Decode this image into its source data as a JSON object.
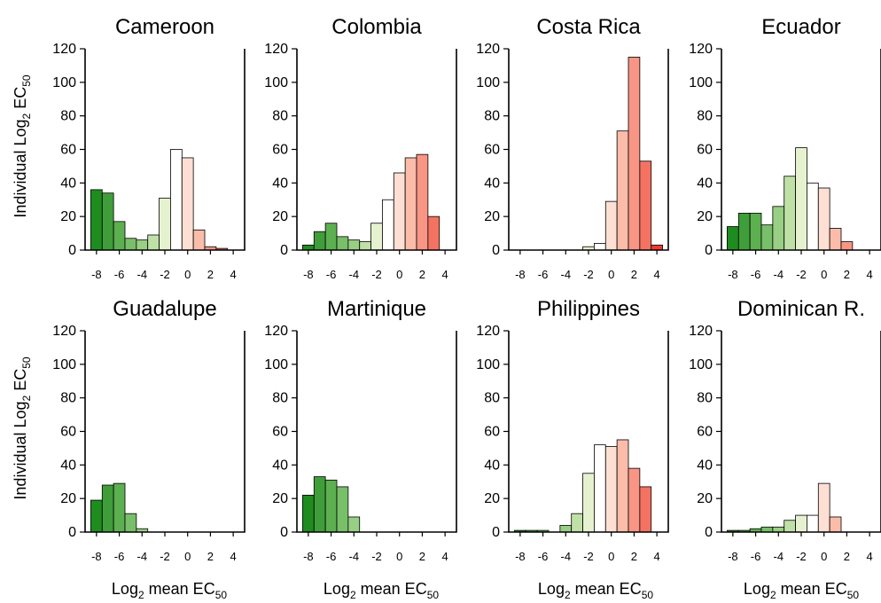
{
  "chart_data": {
    "type": "bar",
    "layout": "small-multiples",
    "ylabel": {
      "text": "Individual Log",
      "sub1": "2",
      "mid": " EC",
      "sub2": "50"
    },
    "xlabel": {
      "text": "Log",
      "sub1": "2",
      "mid": " mean EC",
      "sub2": "50"
    },
    "ylim": [
      0,
      120
    ],
    "yticks": [
      0,
      20,
      40,
      60,
      80,
      100,
      120
    ],
    "xticks": [
      -8,
      -6,
      -4,
      -2,
      0,
      2,
      4
    ],
    "bin_centers": [
      -8,
      -7,
      -6,
      -5,
      -4,
      -3,
      -2,
      -1,
      0,
      1,
      2,
      3,
      4
    ],
    "bin_colors": [
      "#1f8c1f",
      "#3f9e3a",
      "#5cb050",
      "#78bf6a",
      "#98cf85",
      "#bfe0a7",
      "#e6f2cf",
      "#ffffff",
      "#fde0d3",
      "#fbbcaa",
      "#f89585",
      "#f47262",
      "#ee3a36"
    ],
    "panels": [
      {
        "title": "Cameroon",
        "values": [
          36,
          34,
          17,
          7,
          6,
          9,
          31,
          60,
          55,
          12,
          2,
          1,
          0
        ]
      },
      {
        "title": "Colombia",
        "values": [
          3,
          11,
          16,
          8,
          6,
          5,
          16,
          30,
          46,
          55,
          57,
          20,
          0
        ]
      },
      {
        "title": "Costa Rica",
        "values": [
          0,
          0,
          0,
          0,
          0,
          0,
          2,
          4,
          29,
          71,
          115,
          53,
          3
        ]
      },
      {
        "title": "Ecuador",
        "values": [
          14,
          22,
          22,
          15,
          26,
          44,
          61,
          40,
          37,
          13,
          5,
          0,
          0
        ]
      },
      {
        "title": "Guadalupe",
        "values": [
          19,
          28,
          29,
          11,
          2,
          0,
          0,
          0,
          0,
          0,
          0,
          0,
          0
        ]
      },
      {
        "title": "Martinique",
        "values": [
          22,
          33,
          31,
          27,
          9,
          0,
          0,
          0,
          0,
          0,
          0,
          0,
          0
        ]
      },
      {
        "title": "Philippines",
        "values": [
          1,
          1,
          1,
          0,
          4,
          11,
          35,
          52,
          51,
          55,
          38,
          27,
          0
        ]
      },
      {
        "title": "Dominican R.",
        "values": [
          1,
          1,
          2,
          3,
          3,
          7,
          10,
          10,
          29,
          9,
          0,
          0,
          0
        ]
      }
    ]
  }
}
